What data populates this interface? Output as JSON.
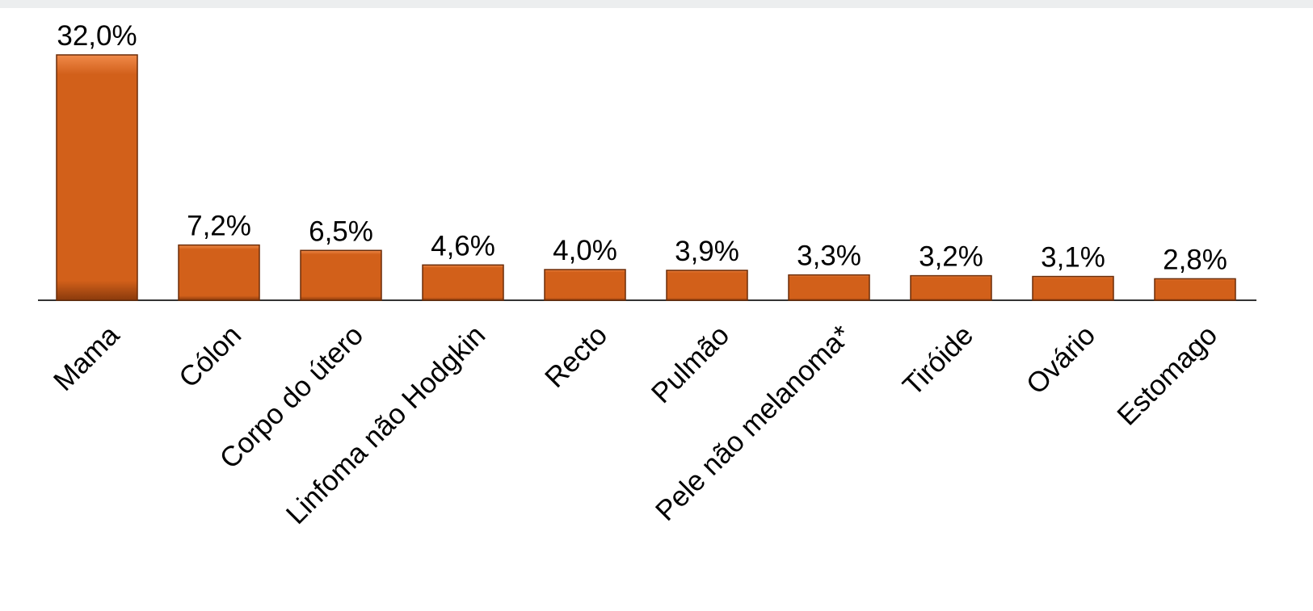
{
  "chart_data": {
    "type": "bar",
    "categories": [
      "Mama",
      "Cólon",
      "Corpo do útero",
      "Linfoma não Hodgkin",
      "Recto",
      "Pulmão",
      "Pele não melanoma*",
      "Tiróide",
      "Ovário",
      "Estomago"
    ],
    "values": [
      32.0,
      7.2,
      6.5,
      4.6,
      4.0,
      3.9,
      3.3,
      3.2,
      3.1,
      2.8
    ],
    "value_labels": [
      "32,0%",
      "7,2%",
      "6,5%",
      "4,6%",
      "4,0%",
      "3,9%",
      "3,3%",
      "3,2%",
      "3,1%",
      "2,8%"
    ],
    "color": "#d2601a"
  }
}
